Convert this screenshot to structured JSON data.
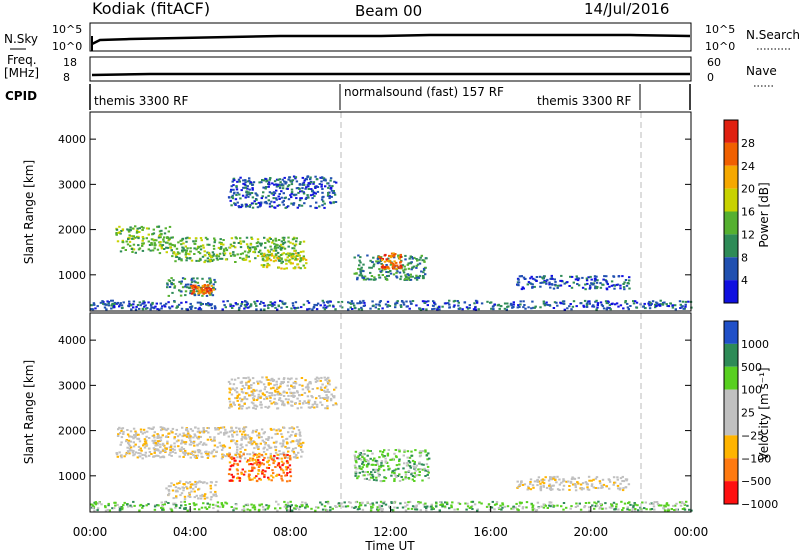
{
  "header": {
    "station": "Kodiak (fitACF)",
    "beam": "Beam 00",
    "date": "14/Jul/2016"
  },
  "noise_panel": {
    "left_label": "N.Sky",
    "right_label": "N.Search",
    "left_ticks": [
      "10^5",
      "10^0"
    ],
    "right_ticks": [
      "10^5",
      "10^0"
    ]
  },
  "freq_panel": {
    "left_label_1": "Freq.",
    "left_label_2": "[MHz]",
    "right_label": "Nave",
    "left_ticks": [
      "18",
      "8"
    ],
    "right_ticks": [
      "60",
      "0"
    ]
  },
  "cpid": {
    "label": "CPID",
    "segments": [
      {
        "name": "themis 3300 RF",
        "start_h": 0,
        "end_h": 10
      },
      {
        "name": "normalsound (fast) 157 RF",
        "start_h": 10,
        "end_h": 22
      },
      {
        "name": "themis 3300 RF",
        "start_h": 22,
        "end_h": 24
      }
    ]
  },
  "colors": {
    "power": [
      "#1010e0",
      "#2050b0",
      "#2e8b57",
      "#55b030",
      "#c8d200",
      "#f5a800",
      "#f06000",
      "#e02010"
    ],
    "velocity": [
      "#ff1010",
      "#ff7a10",
      "#ffb400",
      "#c0c0c0",
      "#c0c0c0",
      "#58d020",
      "#2e8b57",
      "#2050c8"
    ]
  },
  "chart_data": [
    {
      "type": "heatmap",
      "title": "Power",
      "ylabel": "Slant Range [km]",
      "colorbar_label": "Power [dB]",
      "colorbar_ticks": [
        "28",
        "24",
        "20",
        "16",
        "12",
        "8",
        "4"
      ],
      "xlim": [
        0,
        24
      ],
      "ylim": [
        200,
        4600
      ],
      "yticks": [
        "1000",
        "2000",
        "3000",
        "4000"
      ],
      "regions": [
        {
          "t0": 1.0,
          "t1": 3.2,
          "r0": 1500,
          "r1": 2100,
          "level": 3
        },
        {
          "t0": 3.2,
          "t1": 8.5,
          "r0": 1300,
          "r1": 1850,
          "level": 3
        },
        {
          "t0": 6.8,
          "t1": 8.6,
          "r0": 1150,
          "r1": 1500,
          "level": 4
        },
        {
          "t0": 3.0,
          "t1": 5.0,
          "r0": 550,
          "r1": 950,
          "level": 2
        },
        {
          "t0": 4.0,
          "t1": 4.9,
          "r0": 600,
          "r1": 800,
          "level": 6
        },
        {
          "t0": 10.5,
          "t1": 13.4,
          "r0": 900,
          "r1": 1450,
          "level": 2
        },
        {
          "t0": 11.5,
          "t1": 12.4,
          "r0": 1150,
          "r1": 1500,
          "level": 6
        },
        {
          "t0": 5.5,
          "t1": 9.8,
          "r0": 2500,
          "r1": 3200,
          "level": 1
        },
        {
          "t0": 17.0,
          "t1": 21.5,
          "r0": 700,
          "r1": 1000,
          "level": 1
        },
        {
          "t0": 0.0,
          "t1": 24.0,
          "r0": 250,
          "r1": 450,
          "level": 1
        }
      ]
    },
    {
      "type": "heatmap",
      "title": "Velocity",
      "ylabel": "Slant Range [km]",
      "xlabel": "Time UT",
      "colorbar_label": "Velocity [m s⁻¹]",
      "colorbar_ticks": [
        "1000",
        "500",
        "100",
        "25",
        "−25",
        "−100",
        "−500",
        "−1000"
      ],
      "xlim": [
        0,
        24
      ],
      "ylim": [
        200,
        4600
      ],
      "yticks": [
        "1000",
        "2000",
        "3000",
        "4000"
      ],
      "xticks": [
        "00:00",
        "04:00",
        "08:00",
        "12:00",
        "16:00",
        "20:00",
        "00:00"
      ],
      "regions": [
        {
          "t0": 1.0,
          "t1": 8.5,
          "r0": 1400,
          "r1": 2100,
          "level": 3
        },
        {
          "t0": 3.0,
          "t1": 5.0,
          "r0": 500,
          "r1": 900,
          "level": 3
        },
        {
          "t0": 5.5,
          "t1": 8.0,
          "r0": 900,
          "r1": 1500,
          "level": 1
        },
        {
          "t0": 10.5,
          "t1": 13.5,
          "r0": 900,
          "r1": 1600,
          "level": 5
        },
        {
          "t0": 5.5,
          "t1": 9.8,
          "r0": 2500,
          "r1": 3200,
          "level": 3
        },
        {
          "t0": 17.0,
          "t1": 21.5,
          "r0": 700,
          "r1": 1000,
          "level": 3
        },
        {
          "t0": 0.0,
          "t1": 24.0,
          "r0": 250,
          "r1": 450,
          "level": 5
        }
      ]
    }
  ]
}
